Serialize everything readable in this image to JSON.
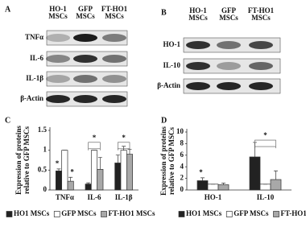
{
  "blots": [
    {
      "label": "A",
      "columns": [
        "HO-1 MSCs",
        "GFP MSCs",
        "FT-HO1 MSCs"
      ],
      "rows": [
        "TNFα",
        "IL-6",
        "IL-1β",
        "β-Actin"
      ]
    },
    {
      "label": "B",
      "columns": [
        "HO-1 MSCs",
        "GFP MSCs",
        "FT-HO1 MSCs"
      ],
      "rows": [
        "HO-1",
        "IL-10",
        "β-Actin"
      ]
    }
  ],
  "chart_data": [
    {
      "type": "bar",
      "label": "C",
      "ylabel": [
        "Expression of proteins",
        "relative to GFP MSCs"
      ],
      "categories": [
        "TNFα",
        "IL-6",
        "IL-1β"
      ],
      "series": [
        {
          "name": "HO1 MSCs",
          "color": "#222222",
          "values": [
            0.48,
            0.15,
            0.68
          ],
          "errors": [
            0.05,
            0.03,
            0.2
          ]
        },
        {
          "name": "GFP MSCs",
          "color": "#ffffff",
          "values": [
            1,
            1,
            1
          ],
          "errors": [
            0,
            0,
            0.1
          ]
        },
        {
          "name": "FT-HO1 MSCs",
          "color": "#a8a8a8",
          "values": [
            0.22,
            0.52,
            0.9
          ],
          "errors": [
            0.1,
            0.3,
            0.12
          ]
        }
      ],
      "annotations": [
        "*",
        "*",
        "*",
        "*"
      ],
      "ylim": [
        0,
        1.5
      ],
      "yticks": [
        0,
        {
          "value": 0.5,
          "label": "0.5"
        },
        1,
        {
          "value": 1.5,
          "label": "1.5"
        }
      ]
    },
    {
      "type": "bar",
      "label": "D",
      "ylabel": [
        "Expression of proteins",
        "relative to GFP MSCs"
      ],
      "categories": [
        "HO-1",
        "IL-10"
      ],
      "series": [
        {
          "name": "HO1 MSCs",
          "color": "#222222",
          "values": [
            1.6,
            5.7
          ],
          "errors": [
            0.5,
            2.5
          ]
        },
        {
          "name": "GFP MSCs",
          "color": "#ffffff",
          "values": [
            1,
            1
          ],
          "errors": [
            0,
            0
          ]
        },
        {
          "name": "FT-HO1 MSCs",
          "color": "#a8a8a8",
          "values": [
            0.9,
            1.8
          ],
          "errors": [
            0.3,
            1.5
          ]
        }
      ],
      "annotations": [
        "*",
        "*"
      ],
      "ylim": [
        0,
        10
      ],
      "yticks": [
        0,
        2,
        4,
        6,
        8,
        10
      ]
    }
  ]
}
